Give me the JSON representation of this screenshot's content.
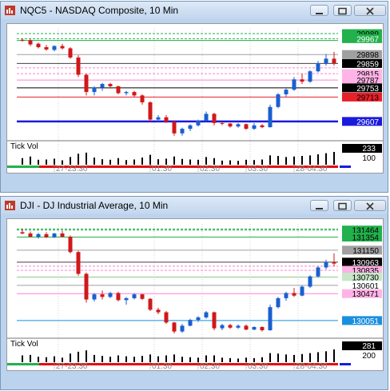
{
  "windows": [
    {
      "title": "NQC5 - NASDAQ Composite, 10 Min",
      "price_labels": [
        {
          "text": "29989",
          "bg": "#22b14c",
          "fg": "#000000"
        },
        {
          "text": "29967",
          "bg": "#22b14c",
          "fg": "#ffffff"
        },
        {
          "text": "29898",
          "bg": "#a0a0a0",
          "fg": "#000000"
        },
        {
          "text": "29859",
          "bg": "#000000",
          "fg": "#ffffff"
        },
        {
          "text": "29815",
          "bg": "#ffb3e6",
          "fg": "#000000"
        },
        {
          "text": "29787",
          "bg": "#ffb3e6",
          "fg": "#000000"
        },
        {
          "text": "29753",
          "bg": "#000000",
          "fg": "#ffffff"
        },
        {
          "text": "29713",
          "bg": "#e8202a",
          "fg": "#000000"
        },
        {
          "text": "29607",
          "bg": "#1a1adc",
          "fg": "#ffffff"
        }
      ],
      "volume_label": "Tick Vol",
      "volume_values": [
        "233",
        "100"
      ],
      "time_labels": [
        "27-23:30",
        "01:30",
        "02:30",
        "03:30",
        "28-04:30"
      ],
      "chart_data": {
        "type": "candlestick",
        "candles": [
          {
            "o": 29962,
            "h": 29968,
            "l": 29955,
            "c": 29958,
            "v": 120
          },
          {
            "o": 29960,
            "h": 29965,
            "l": 29935,
            "c": 29942,
            "v": 150
          },
          {
            "o": 29945,
            "h": 29950,
            "l": 29925,
            "c": 29930,
            "v": 90
          },
          {
            "o": 29930,
            "h": 29940,
            "l": 29915,
            "c": 29920,
            "v": 95
          },
          {
            "o": 29918,
            "h": 29938,
            "l": 29912,
            "c": 29935,
            "v": 110
          },
          {
            "o": 29935,
            "h": 29945,
            "l": 29920,
            "c": 29925,
            "v": 80
          },
          {
            "o": 29925,
            "h": 29930,
            "l": 29880,
            "c": 29885,
            "v": 140
          },
          {
            "o": 29885,
            "h": 29895,
            "l": 29800,
            "c": 29810,
            "v": 200
          },
          {
            "o": 29810,
            "h": 29815,
            "l": 29720,
            "c": 29735,
            "v": 220
          },
          {
            "o": 29735,
            "h": 29760,
            "l": 29720,
            "c": 29755,
            "v": 130
          },
          {
            "o": 29755,
            "h": 29775,
            "l": 29740,
            "c": 29770,
            "v": 100
          },
          {
            "o": 29770,
            "h": 29775,
            "l": 29750,
            "c": 29760,
            "v": 90
          },
          {
            "o": 29760,
            "h": 29762,
            "l": 29725,
            "c": 29730,
            "v": 120
          },
          {
            "o": 29730,
            "h": 29740,
            "l": 29720,
            "c": 29735,
            "v": 85
          },
          {
            "o": 29735,
            "h": 29740,
            "l": 29715,
            "c": 29720,
            "v": 95
          },
          {
            "o": 29720,
            "h": 29725,
            "l": 29680,
            "c": 29690,
            "v": 130
          },
          {
            "o": 29690,
            "h": 29695,
            "l": 29605,
            "c": 29615,
            "v": 180
          },
          {
            "o": 29615,
            "h": 29635,
            "l": 29605,
            "c": 29625,
            "v": 100
          },
          {
            "o": 29625,
            "h": 29635,
            "l": 29600,
            "c": 29605,
            "v": 110
          },
          {
            "o": 29605,
            "h": 29610,
            "l": 29545,
            "c": 29555,
            "v": 150
          },
          {
            "o": 29555,
            "h": 29580,
            "l": 29545,
            "c": 29575,
            "v": 105
          },
          {
            "o": 29575,
            "h": 29595,
            "l": 29565,
            "c": 29590,
            "v": 95
          },
          {
            "o": 29590,
            "h": 29615,
            "l": 29585,
            "c": 29610,
            "v": 90
          },
          {
            "o": 29610,
            "h": 29650,
            "l": 29605,
            "c": 29640,
            "v": 140
          },
          {
            "o": 29640,
            "h": 29645,
            "l": 29590,
            "c": 29600,
            "v": 120
          },
          {
            "o": 29600,
            "h": 29605,
            "l": 29590,
            "c": 29598,
            "v": 75
          },
          {
            "o": 29598,
            "h": 29600,
            "l": 29580,
            "c": 29585,
            "v": 80
          },
          {
            "o": 29585,
            "h": 29600,
            "l": 29580,
            "c": 29595,
            "v": 70
          },
          {
            "o": 29595,
            "h": 29598,
            "l": 29570,
            "c": 29575,
            "v": 90
          },
          {
            "o": 29575,
            "h": 29600,
            "l": 29570,
            "c": 29590,
            "v": 85
          },
          {
            "o": 29590,
            "h": 29595,
            "l": 29578,
            "c": 29582,
            "v": 95
          },
          {
            "o": 29582,
            "h": 29680,
            "l": 29580,
            "c": 29670,
            "v": 170
          },
          {
            "o": 29670,
            "h": 29730,
            "l": 29665,
            "c": 29725,
            "v": 160
          },
          {
            "o": 29725,
            "h": 29750,
            "l": 29715,
            "c": 29745,
            "v": 140
          },
          {
            "o": 29745,
            "h": 29800,
            "l": 29740,
            "c": 29790,
            "v": 150
          },
          {
            "o": 29790,
            "h": 29815,
            "l": 29770,
            "c": 29780,
            "v": 160
          },
          {
            "o": 29780,
            "h": 29830,
            "l": 29775,
            "c": 29825,
            "v": 170
          },
          {
            "o": 29825,
            "h": 29870,
            "l": 29820,
            "c": 29860,
            "v": 190
          },
          {
            "o": 29860,
            "h": 29900,
            "l": 29850,
            "c": 29880,
            "v": 210
          },
          {
            "o": 29880,
            "h": 29910,
            "l": 29850,
            "c": 29860,
            "v": 233
          }
        ],
        "levels": [
          {
            "value": 29989,
            "color": "#22b14c",
            "style": "dashed"
          },
          {
            "value": 29967,
            "color": "#22b14c",
            "style": "dashed"
          },
          {
            "value": 29959,
            "color": "#22b14c",
            "style": "solid"
          },
          {
            "value": 29898,
            "color": "#a0a0a0",
            "style": "solid"
          },
          {
            "value": 29859,
            "color": "#404040",
            "style": "solid"
          },
          {
            "value": 29840,
            "color": "#ff80d0",
            "style": "dashed"
          },
          {
            "value": 29815,
            "color": "#ff80d0",
            "style": "dashed"
          },
          {
            "value": 29787,
            "color": "#ff80d0",
            "style": "solid"
          },
          {
            "value": 29753,
            "color": "#000000",
            "style": "solid"
          },
          {
            "value": 29713,
            "color": "#e8202a",
            "style": "solid"
          },
          {
            "value": 29607,
            "color": "#1a1adc",
            "style": "thick"
          }
        ],
        "ylim": [
          29530,
          30010
        ]
      }
    },
    {
      "title": "DJI - DJ Industrial Average, 10 Min",
      "price_labels": [
        {
          "text": "131464",
          "bg": "#22b14c",
          "fg": "#000000"
        },
        {
          "text": "131354",
          "bg": "#22b14c",
          "fg": "#000000"
        },
        {
          "text": "131150",
          "bg": "#a0a0a0",
          "fg": "#000000"
        },
        {
          "text": "130963",
          "bg": "#000000",
          "fg": "#ffffff"
        },
        {
          "text": "130835",
          "bg": "#ffb3e6",
          "fg": "#000000"
        },
        {
          "text": "130730",
          "bg": "#c8e6c8",
          "fg": "#000000"
        },
        {
          "text": "130601",
          "bg": "#ffffff",
          "fg": "#000000"
        },
        {
          "text": "130471",
          "bg": "#ffb3e6",
          "fg": "#000000"
        },
        {
          "text": "130051",
          "bg": "#1a8fe0",
          "fg": "#ffffff"
        }
      ],
      "volume_label": "Tick Vol",
      "volume_values": [
        "281",
        "200"
      ],
      "time_labels": [
        "27-23:30",
        "01:30",
        "02:30",
        "03:30",
        "28-04:30"
      ],
      "chart_data": {
        "type": "candlestick",
        "candles": [
          {
            "o": 131430,
            "h": 131480,
            "l": 131400,
            "c": 131410,
            "v": 150
          },
          {
            "o": 131410,
            "h": 131440,
            "l": 131350,
            "c": 131360,
            "v": 160
          },
          {
            "o": 131360,
            "h": 131420,
            "l": 131330,
            "c": 131400,
            "v": 120
          },
          {
            "o": 131400,
            "h": 131430,
            "l": 131340,
            "c": 131350,
            "v": 110
          },
          {
            "o": 131350,
            "h": 131420,
            "l": 131340,
            "c": 131410,
            "v": 130
          },
          {
            "o": 131410,
            "h": 131450,
            "l": 131350,
            "c": 131360,
            "v": 100
          },
          {
            "o": 131360,
            "h": 131380,
            "l": 131100,
            "c": 131120,
            "v": 190
          },
          {
            "o": 131120,
            "h": 131140,
            "l": 130750,
            "c": 130780,
            "v": 230
          },
          {
            "o": 130780,
            "h": 130800,
            "l": 130330,
            "c": 130380,
            "v": 260
          },
          {
            "o": 130380,
            "h": 130480,
            "l": 130350,
            "c": 130460,
            "v": 160
          },
          {
            "o": 130460,
            "h": 130520,
            "l": 130380,
            "c": 130420,
            "v": 140
          },
          {
            "o": 130420,
            "h": 130500,
            "l": 130400,
            "c": 130480,
            "v": 120
          },
          {
            "o": 130480,
            "h": 130500,
            "l": 130350,
            "c": 130370,
            "v": 150
          },
          {
            "o": 130370,
            "h": 130420,
            "l": 130300,
            "c": 130400,
            "v": 130
          },
          {
            "o": 130400,
            "h": 130480,
            "l": 130380,
            "c": 130460,
            "v": 120
          },
          {
            "o": 130460,
            "h": 130470,
            "l": 130370,
            "c": 130390,
            "v": 140
          },
          {
            "o": 130390,
            "h": 130400,
            "l": 130200,
            "c": 130220,
            "v": 170
          },
          {
            "o": 130220,
            "h": 130250,
            "l": 130150,
            "c": 130180,
            "v": 130
          },
          {
            "o": 130180,
            "h": 130200,
            "l": 130000,
            "c": 130020,
            "v": 150
          },
          {
            "o": 130020,
            "h": 130030,
            "l": 129850,
            "c": 129880,
            "v": 170
          },
          {
            "o": 129880,
            "h": 130000,
            "l": 129860,
            "c": 129970,
            "v": 120
          },
          {
            "o": 129970,
            "h": 130080,
            "l": 129960,
            "c": 130060,
            "v": 110
          },
          {
            "o": 130060,
            "h": 130120,
            "l": 130030,
            "c": 130100,
            "v": 100
          },
          {
            "o": 130100,
            "h": 130200,
            "l": 130080,
            "c": 130180,
            "v": 150
          },
          {
            "o": 130180,
            "h": 130190,
            "l": 129900,
            "c": 129930,
            "v": 150
          },
          {
            "o": 129930,
            "h": 130000,
            "l": 129900,
            "c": 129980,
            "v": 100
          },
          {
            "o": 129980,
            "h": 130000,
            "l": 129920,
            "c": 129940,
            "v": 90
          },
          {
            "o": 129940,
            "h": 129990,
            "l": 129920,
            "c": 129970,
            "v": 80
          },
          {
            "o": 129970,
            "h": 129990,
            "l": 129900,
            "c": 129910,
            "v": 100
          },
          {
            "o": 129910,
            "h": 129960,
            "l": 129900,
            "c": 129950,
            "v": 90
          },
          {
            "o": 129950,
            "h": 129960,
            "l": 129880,
            "c": 129900,
            "v": 110
          },
          {
            "o": 129900,
            "h": 130300,
            "l": 129890,
            "c": 130260,
            "v": 200
          },
          {
            "o": 130260,
            "h": 130420,
            "l": 130240,
            "c": 130400,
            "v": 190
          },
          {
            "o": 130400,
            "h": 130500,
            "l": 130360,
            "c": 130480,
            "v": 170
          },
          {
            "o": 130480,
            "h": 130560,
            "l": 130420,
            "c": 130440,
            "v": 160
          },
          {
            "o": 130440,
            "h": 130600,
            "l": 130430,
            "c": 130580,
            "v": 180
          },
          {
            "o": 130580,
            "h": 130760,
            "l": 130560,
            "c": 130740,
            "v": 200
          },
          {
            "o": 130740,
            "h": 130900,
            "l": 130720,
            "c": 130880,
            "v": 220
          },
          {
            "o": 130880,
            "h": 131000,
            "l": 130850,
            "c": 130960,
            "v": 240
          },
          {
            "o": 130960,
            "h": 131100,
            "l": 130900,
            "c": 130940,
            "v": 281
          }
        ],
        "levels": [
          {
            "value": 131480,
            "color": "#22b14c",
            "style": "dashed"
          },
          {
            "value": 131464,
            "color": "#22b14c",
            "style": "dashed"
          },
          {
            "value": 131354,
            "color": "#22b14c",
            "style": "solid"
          },
          {
            "value": 131150,
            "color": "#a0a0a0",
            "style": "solid"
          },
          {
            "value": 130963,
            "color": "#404040",
            "style": "solid"
          },
          {
            "value": 130900,
            "color": "#ff80d0",
            "style": "dashed"
          },
          {
            "value": 130835,
            "color": "#ff80d0",
            "style": "dashed"
          },
          {
            "value": 130730,
            "color": "#8fc88f",
            "style": "solid"
          },
          {
            "value": 130601,
            "color": "#a0a0a0",
            "style": "solid"
          },
          {
            "value": 130471,
            "color": "#ff80d0",
            "style": "solid"
          },
          {
            "value": 130051,
            "color": "#1a8fe0",
            "style": "solid"
          }
        ],
        "ylim": [
          129800,
          131560
        ]
      }
    }
  ]
}
